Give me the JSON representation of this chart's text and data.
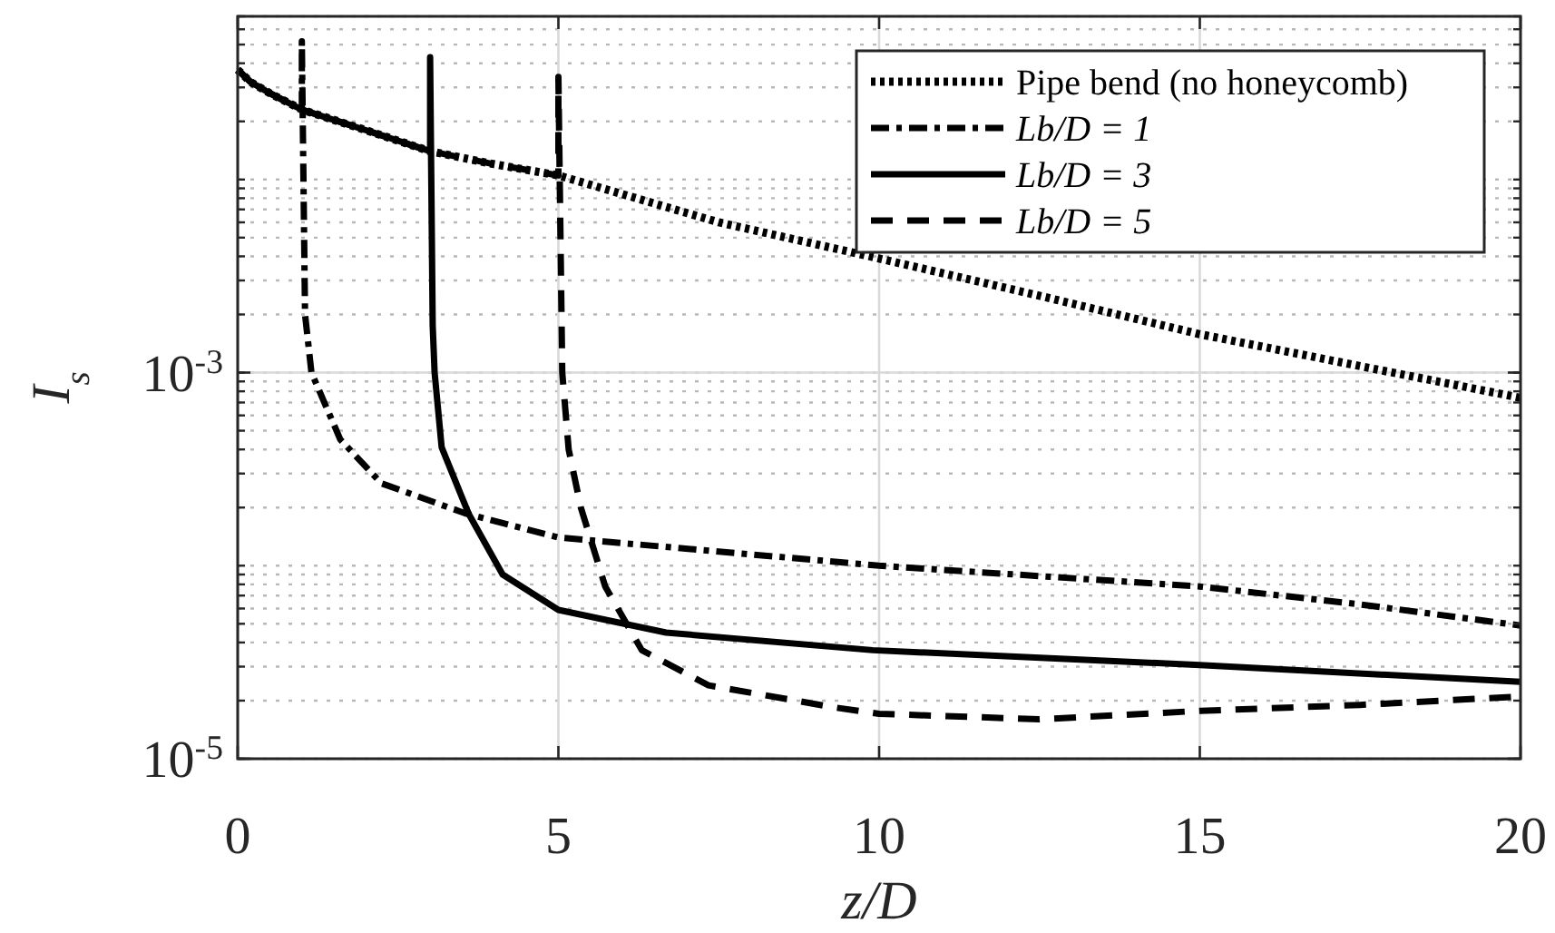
{
  "chart_data": {
    "type": "line",
    "xlabel": "z/D",
    "ylabel": "I$_{s}$",
    "log": "y",
    "grid": true,
    "legend": "top right",
    "xlim": [
      0,
      20
    ],
    "xticks": [
      0,
      5,
      10,
      15,
      20
    ],
    "ylim": [
      1e-05,
      0.07
    ],
    "yticks": [
      {
        "value": 1e-05,
        "label": "10$^{-5}$"
      },
      {
        "value": 0.001,
        "label": "10$^{-3}$"
      }
    ],
    "series": [
      {
        "name": "Pipe bend (no honeycomb)",
        "color": "#000000",
        "line_style": "dotted",
        "x": [
          0,
          0.2,
          0.5,
          1,
          2,
          3,
          4,
          5,
          7.5,
          10,
          12.5,
          15,
          17.5,
          20
        ],
        "values": [
          0.037,
          0.032,
          0.028,
          0.023,
          0.018,
          0.014,
          0.012,
          0.0105,
          0.006,
          0.0039,
          0.0025,
          0.00158,
          0.00108,
          0.00074
        ]
      },
      {
        "name": "Lb/D = 1",
        "color": "#000000",
        "line_style": "dashdot",
        "x": [
          0,
          0.2,
          0.5,
          1,
          1,
          1.05,
          1.15,
          1.6,
          2.24,
          3.56,
          5,
          10,
          15,
          17.5,
          20
        ],
        "values": [
          0.037,
          0.032,
          0.028,
          0.023,
          0.052,
          0.002,
          0.001,
          0.00045,
          0.000267,
          0.000186,
          0.00014,
          0.0001,
          7.8e-05,
          6.3e-05,
          4.9e-05
        ]
      },
      {
        "name": "Lb/D = 3",
        "color": "#000000",
        "line_style": "solid",
        "x": [
          0,
          0.2,
          0.5,
          1,
          2,
          3,
          3,
          3.04,
          3.07,
          3.18,
          3.6,
          4.13,
          5,
          6.68,
          9.9,
          15,
          20
        ],
        "values": [
          0.037,
          0.032,
          0.028,
          0.023,
          0.018,
          0.014,
          0.043,
          0.00176,
          0.001,
          0.00041,
          0.000186,
          9e-05,
          5.9e-05,
          4.5e-05,
          3.65e-05,
          3.06e-05,
          2.5e-05
        ]
      },
      {
        "name": "Lb/D = 5",
        "color": "#000000",
        "line_style": "dashed",
        "x": [
          0,
          0.2,
          0.5,
          1,
          2,
          3,
          4,
          5,
          5,
          5.06,
          5.16,
          5.35,
          5.73,
          6.3,
          7.34,
          9.32,
          10,
          12.5,
          15,
          17.5,
          20
        ],
        "values": [
          0.037,
          0.032,
          0.028,
          0.023,
          0.018,
          0.014,
          0.012,
          0.0105,
          0.034,
          0.001,
          0.0004,
          0.0002,
          7.8e-05,
          3.65e-05,
          2.4e-05,
          1.84e-05,
          1.71e-05,
          1.6e-05,
          1.77e-05,
          1.9e-05,
          2.1e-05
        ]
      }
    ]
  }
}
